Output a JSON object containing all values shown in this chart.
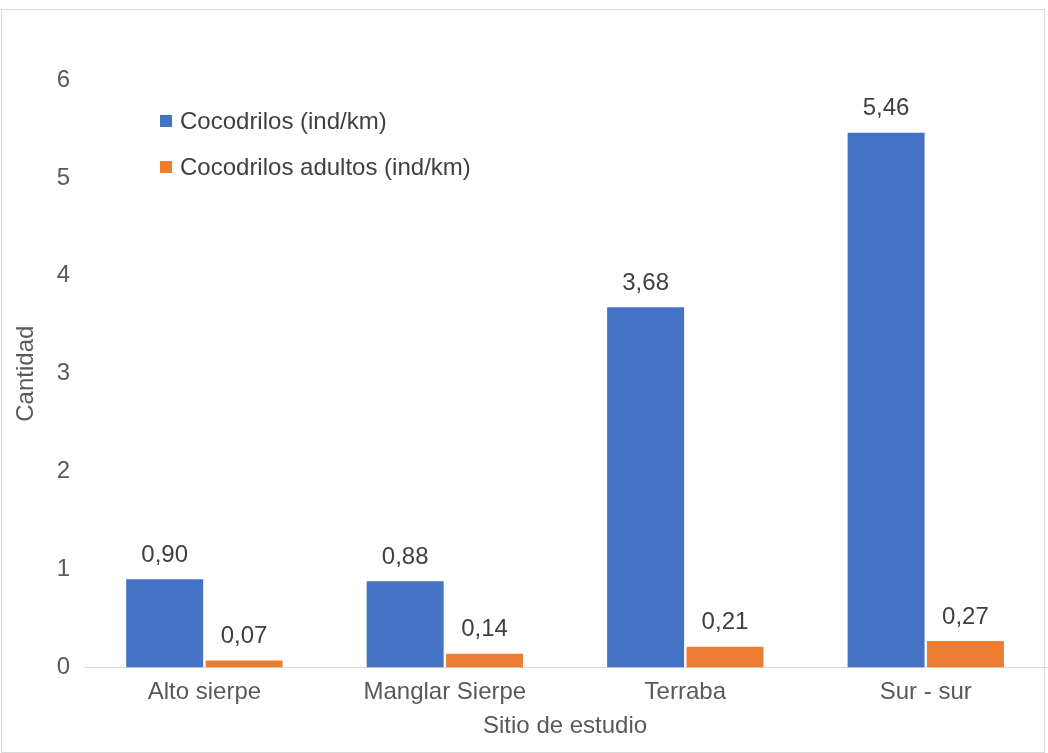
{
  "chart_data": {
    "type": "bar",
    "xlabel": "Sitio de estudio",
    "ylabel": "Cantidad",
    "categories": [
      "Alto sierpe",
      "Manglar Sierpe",
      "Terraba",
      "Sur - sur"
    ],
    "series": [
      {
        "name": "Cocodrilos (ind/km)",
        "color": "#4472c4",
        "values": [
          0.9,
          0.88,
          3.68,
          5.46
        ],
        "value_labels": [
          "0,90",
          "0,88",
          "3,68",
          "5,46"
        ]
      },
      {
        "name": "Cocodrilos adultos (ind/km)",
        "color": "#ed7d31",
        "values": [
          0.07,
          0.14,
          0.21,
          0.27
        ],
        "value_labels": [
          "0,07",
          "0,14",
          "0,21",
          "0,27"
        ]
      }
    ],
    "ylim": [
      0,
      6
    ],
    "yticks": [
      0,
      1,
      2,
      3,
      4,
      5,
      6
    ],
    "grid": false,
    "legend": "top left"
  }
}
